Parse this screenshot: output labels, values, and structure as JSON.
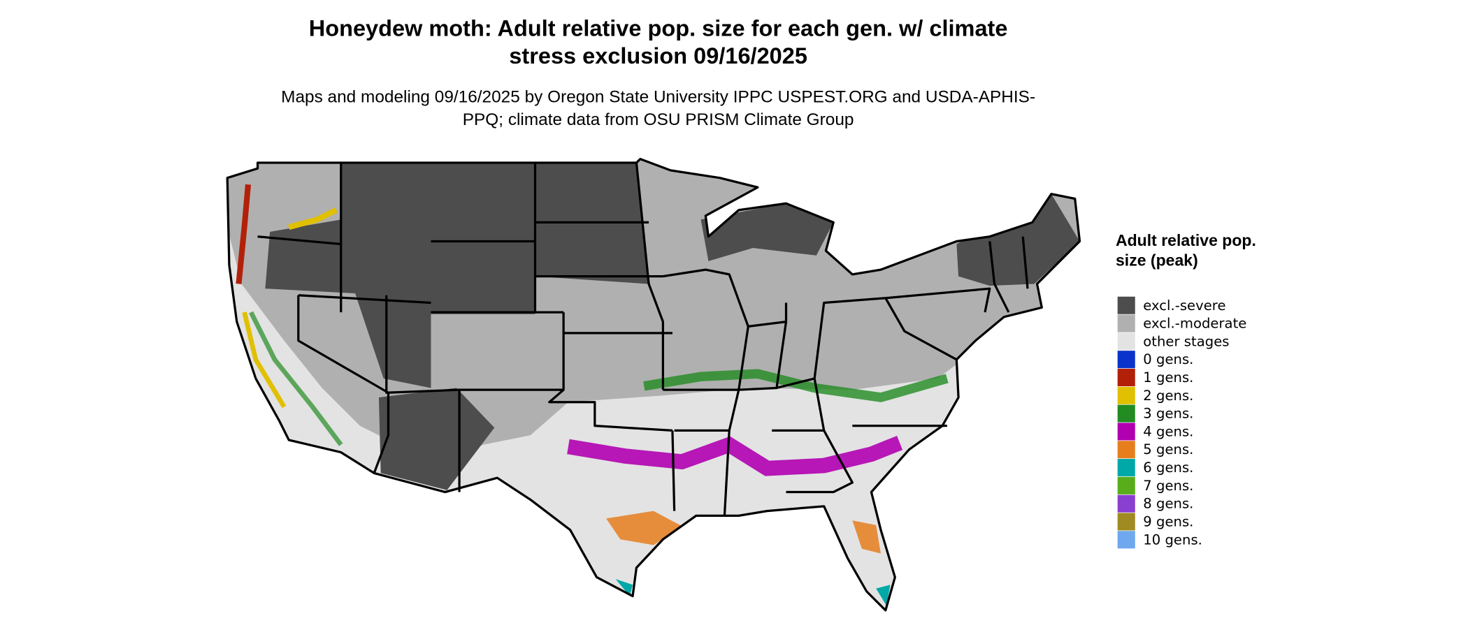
{
  "title": "Honeydew moth: Adult relative pop. size for each gen. w/ climate stress exclusion 09/16/2025",
  "subtitle": "Maps and modeling 09/16/2025 by Oregon State University IPPC USPEST.ORG and USDA-APHIS-PPQ; climate data from OSU PRISM Climate Group",
  "legend": {
    "title": "Adult relative pop. size (peak)",
    "items": [
      {
        "label": "excl.-severe",
        "color": "#4d4d4d"
      },
      {
        "label": "excl.-moderate",
        "color": "#b0b0b0"
      },
      {
        "label": "other stages",
        "color": "#e3e3e3"
      },
      {
        "label": "0 gens.",
        "color": "#0a33cc"
      },
      {
        "label": "1 gens.",
        "color": "#b3200a"
      },
      {
        "label": "2 gens.",
        "color": "#e0c000"
      },
      {
        "label": "3 gens.",
        "color": "#228b22"
      },
      {
        "label": "4 gens.",
        "color": "#b000b0"
      },
      {
        "label": "5 gens.",
        "color": "#e67e1e"
      },
      {
        "label": "6 gens.",
        "color": "#00a8a8"
      },
      {
        "label": "7 gens.",
        "color": "#5aad1a"
      },
      {
        "label": "8 gens.",
        "color": "#8a3fd1"
      },
      {
        "label": "9 gens.",
        "color": "#a08a22"
      },
      {
        "label": "10 gens.",
        "color": "#6fa8ee"
      }
    ]
  }
}
